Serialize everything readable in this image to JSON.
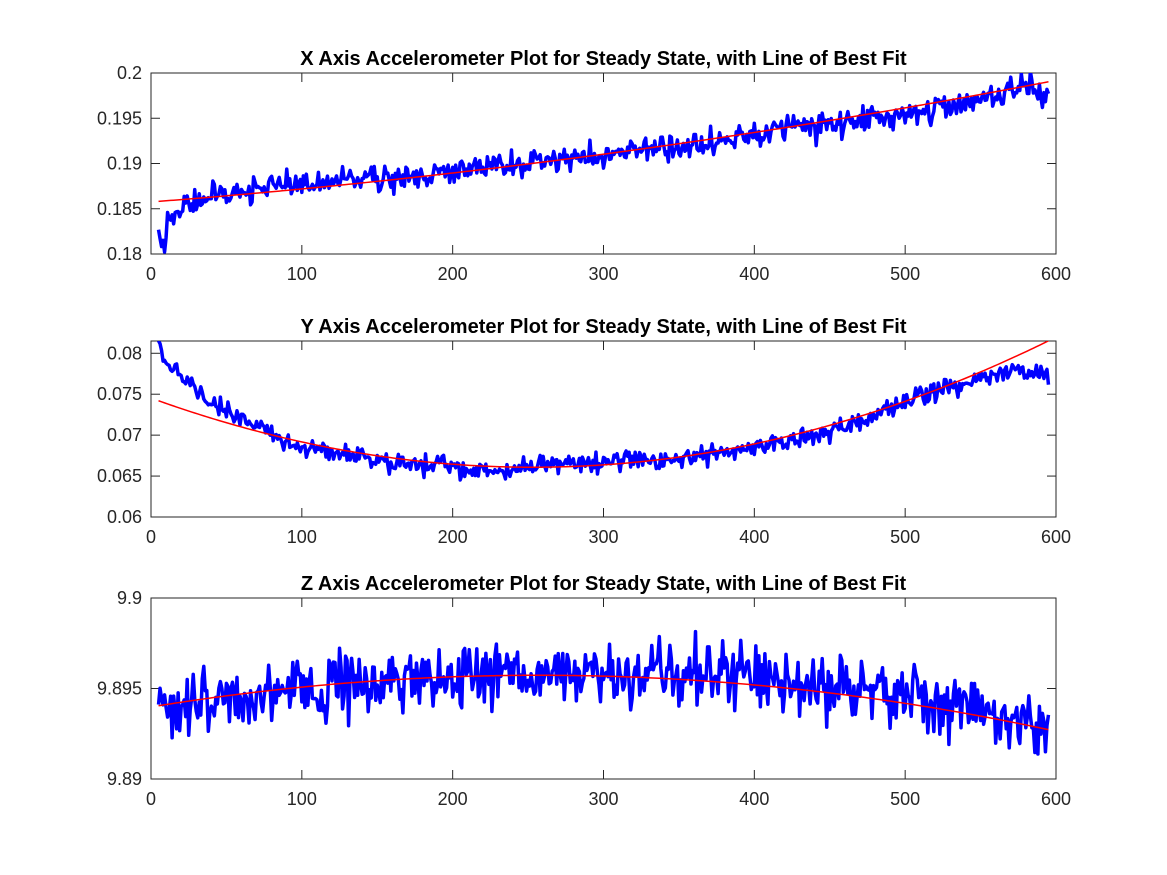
{
  "chart_data": [
    {
      "type": "line",
      "title": "X Axis Accelerometer Plot for Steady State, with Line of Best Fit",
      "xlabel": "",
      "ylabel": "",
      "xlim": [
        0,
        600
      ],
      "ylim": [
        0.18,
        0.2
      ],
      "xticks": [
        0,
        100,
        200,
        300,
        400,
        500,
        600
      ],
      "yticks": [
        0.18,
        0.185,
        0.19,
        0.195,
        0.2
      ],
      "ytick_labels": [
        "0.18",
        "0.185",
        "0.19",
        "0.195",
        "0.2"
      ],
      "grid": false,
      "series": [
        {
          "color": "#0000ff",
          "style": "noisy-measurement",
          "x_range": [
            5,
            595
          ],
          "points": [
            [
              5,
              0.1815
            ],
            [
              8,
              0.1805
            ],
            [
              12,
              0.184
            ],
            [
              20,
              0.185
            ],
            [
              40,
              0.1865
            ],
            [
              60,
              0.187
            ],
            [
              80,
              0.1875
            ],
            [
              100,
              0.1875
            ],
            [
              125,
              0.188
            ],
            [
              150,
              0.1885
            ],
            [
              175,
              0.1885
            ],
            [
              200,
              0.1893
            ],
            [
              225,
              0.1897
            ],
            [
              250,
              0.19
            ],
            [
              275,
              0.1903
            ],
            [
              300,
              0.191
            ],
            [
              325,
              0.1915
            ],
            [
              350,
              0.192
            ],
            [
              375,
              0.1925
            ],
            [
              400,
              0.1932
            ],
            [
              425,
              0.1938
            ],
            [
              450,
              0.1942
            ],
            [
              475,
              0.195
            ],
            [
              500,
              0.1955
            ],
            [
              525,
              0.1962
            ],
            [
              550,
              0.197
            ],
            [
              575,
              0.198
            ],
            [
              585,
              0.1985
            ],
            [
              590,
              0.1975
            ],
            [
              595,
              0.1985
            ]
          ],
          "noise": 0.0011,
          "line_width": 3.5
        },
        {
          "color": "#ff0000",
          "style": "fit",
          "x_range": [
            5,
            595
          ],
          "poly": [
            0.18575,
            1.28e-05,
            1.6e-08
          ],
          "line_width": 1.5
        }
      ]
    },
    {
      "type": "line",
      "title": "Y Axis Accelerometer Plot for Steady State, with Line of Best Fit",
      "xlabel": "",
      "ylabel": "",
      "xlim": [
        0,
        600
      ],
      "ylim": [
        0.06,
        0.0815
      ],
      "xticks": [
        0,
        100,
        200,
        300,
        400,
        500,
        600
      ],
      "yticks": [
        0.06,
        0.065,
        0.07,
        0.075,
        0.08
      ],
      "ytick_labels": [
        "0.06",
        "0.065",
        "0.07",
        "0.075",
        "0.08"
      ],
      "grid": false,
      "series": [
        {
          "color": "#0000ff",
          "style": "noisy-measurement",
          "x_range": [
            5,
            595
          ],
          "points": [
            [
              5,
              0.081
            ],
            [
              10,
              0.079
            ],
            [
              20,
              0.0775
            ],
            [
              40,
              0.074
            ],
            [
              60,
              0.072
            ],
            [
              80,
              0.07
            ],
            [
              100,
              0.0685
            ],
            [
              125,
              0.0678
            ],
            [
              150,
              0.067
            ],
            [
              175,
              0.0665
            ],
            [
              200,
              0.066
            ],
            [
              225,
              0.0658
            ],
            [
              240,
              0.0653
            ],
            [
              250,
              0.0663
            ],
            [
              275,
              0.0665
            ],
            [
              300,
              0.0668
            ],
            [
              325,
              0.067
            ],
            [
              350,
              0.0672
            ],
            [
              375,
              0.0678
            ],
            [
              400,
              0.0685
            ],
            [
              425,
              0.0695
            ],
            [
              450,
              0.0705
            ],
            [
              475,
              0.072
            ],
            [
              500,
              0.074
            ],
            [
              525,
              0.0755
            ],
            [
              550,
              0.077
            ],
            [
              575,
              0.078
            ],
            [
              585,
              0.0775
            ],
            [
              595,
              0.0775
            ]
          ],
          "noise": 0.0009,
          "line_width": 3.5
        },
        {
          "color": "#ff0000",
          "style": "fit",
          "x_range": [
            5,
            595
          ],
          "poly": [
            0.07453,
            -6.68e-05,
            1.32e-07
          ],
          "line_width": 1.5
        }
      ]
    },
    {
      "type": "line",
      "title": "Z Axis Accelerometer Plot for Steady State, with Line of Best Fit",
      "xlabel": "",
      "ylabel": "",
      "xlim": [
        0,
        600
      ],
      "ylim": [
        9.89,
        9.9
      ],
      "xticks": [
        0,
        100,
        200,
        300,
        400,
        500,
        600
      ],
      "yticks": [
        9.89,
        9.895,
        9.9
      ],
      "ytick_labels": [
        "9.89",
        "9.895",
        "9.9"
      ],
      "grid": false,
      "series": [
        {
          "color": "#0000ff",
          "style": "noisy-measurement",
          "x_range": [
            5,
            595
          ],
          "points": [
            [
              5,
              9.894
            ],
            [
              50,
              9.8945
            ],
            [
              100,
              9.895
            ],
            [
              150,
              9.8955
            ],
            [
              200,
              9.8957
            ],
            [
              250,
              9.8958
            ],
            [
              300,
              9.8958
            ],
            [
              350,
              9.8958
            ],
            [
              400,
              9.8956
            ],
            [
              450,
              9.895
            ],
            [
              500,
              9.8945
            ],
            [
              550,
              9.8938
            ],
            [
              575,
              9.8932
            ],
            [
              595,
              9.893
            ]
          ],
          "noise": 0.0013,
          "line_width": 3.5
        },
        {
          "color": "#ff0000",
          "style": "fit",
          "x_range": [
            5,
            595
          ],
          "poly": [
            9.89398,
            1.36e-05,
            -2.64e-08
          ],
          "line_width": 1.5
        }
      ]
    }
  ]
}
